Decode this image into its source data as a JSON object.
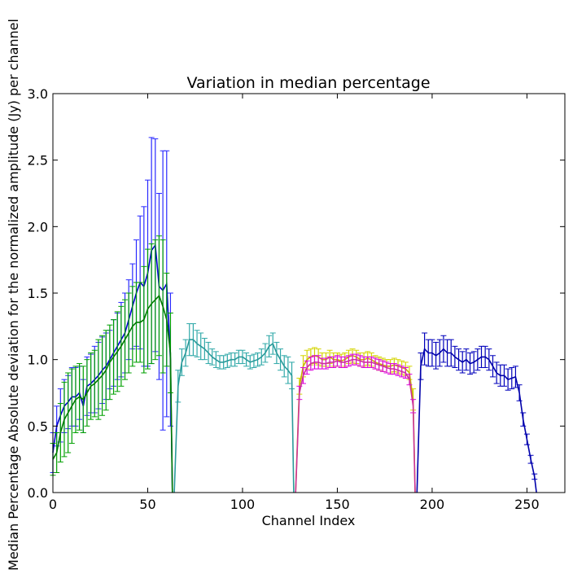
{
  "chart_data": {
    "type": "line",
    "title": "Variation in median percentage",
    "xlabel": "Channel Index",
    "ylabel": "Median Percentage Absolute deviation for the normalized amplitude (Jy) per channel",
    "xlim": [
      0,
      270
    ],
    "ylim": [
      0.0,
      3.0
    ],
    "grid": false,
    "legend": "none",
    "xticks": [
      0,
      50,
      100,
      150,
      200,
      250
    ],
    "xtick_labels": [
      "0",
      "50",
      "100",
      "150",
      "200",
      "250"
    ],
    "yticks": [
      0.0,
      0.5,
      1.0,
      1.5,
      2.0,
      2.5,
      3.0
    ],
    "ytick_labels": [
      "0.0",
      "0.5",
      "1.0",
      "1.5",
      "2.0",
      "2.5",
      "3.0"
    ],
    "series": [
      {
        "line_color": "#0000cc",
        "bar_color": "#2a2aff",
        "x": [
          0,
          2,
          4,
          6,
          8,
          10,
          12,
          14,
          16,
          18,
          20,
          22,
          24,
          26,
          28,
          30,
          32,
          34,
          36,
          38,
          40,
          42,
          44,
          46,
          48,
          50,
          52,
          54,
          56,
          58,
          60,
          62,
          63
        ],
        "y": [
          0.3,
          0.5,
          0.58,
          0.65,
          0.68,
          0.72,
          0.72,
          0.75,
          0.65,
          0.8,
          0.82,
          0.85,
          0.88,
          0.92,
          0.95,
          1.0,
          1.05,
          1.1,
          1.15,
          1.2,
          1.3,
          1.4,
          1.5,
          1.58,
          1.55,
          1.65,
          1.82,
          1.86,
          1.55,
          1.52,
          1.57,
          1.0,
          0.0
        ],
        "err": [
          0.15,
          0.15,
          0.2,
          0.2,
          0.2,
          0.22,
          0.22,
          0.2,
          0.2,
          0.22,
          0.22,
          0.25,
          0.25,
          0.25,
          0.25,
          0.22,
          0.25,
          0.25,
          0.28,
          0.3,
          0.3,
          0.32,
          0.4,
          0.5,
          0.6,
          0.7,
          0.85,
          0.8,
          0.7,
          1.05,
          1.0,
          0.5,
          0.0
        ]
      },
      {
        "line_color": "#007a00",
        "bar_color": "#00a000",
        "x": [
          0,
          2,
          4,
          6,
          8,
          10,
          12,
          14,
          16,
          18,
          20,
          22,
          24,
          26,
          28,
          30,
          32,
          34,
          36,
          38,
          40,
          42,
          44,
          46,
          48,
          50,
          52,
          54,
          56,
          58,
          60,
          62,
          63
        ],
        "y": [
          0.25,
          0.3,
          0.45,
          0.55,
          0.6,
          0.65,
          0.7,
          0.72,
          0.7,
          0.75,
          0.8,
          0.82,
          0.85,
          0.88,
          0.92,
          0.98,
          1.02,
          1.06,
          1.1,
          1.15,
          1.2,
          1.25,
          1.28,
          1.28,
          1.3,
          1.38,
          1.42,
          1.45,
          1.48,
          1.4,
          1.3,
          1.05,
          0.0
        ],
        "err": [
          0.12,
          0.15,
          0.22,
          0.28,
          0.3,
          0.28,
          0.25,
          0.25,
          0.25,
          0.25,
          0.25,
          0.25,
          0.3,
          0.3,
          0.3,
          0.28,
          0.28,
          0.3,
          0.3,
          0.3,
          0.3,
          0.3,
          0.3,
          0.3,
          0.4,
          0.45,
          0.45,
          0.45,
          0.45,
          0.5,
          0.35,
          0.3,
          0.0
        ]
      },
      {
        "line_color": "#2a9a9a",
        "bar_color": "#2fa8a8",
        "x": [
          64,
          66,
          68,
          70,
          72,
          74,
          76,
          78,
          80,
          82,
          84,
          86,
          88,
          90,
          92,
          94,
          96,
          98,
          100,
          102,
          104,
          106,
          108,
          110,
          112,
          114,
          116,
          118,
          120,
          122,
          124,
          126,
          127
        ],
        "y": [
          0.0,
          0.8,
          0.98,
          1.05,
          1.15,
          1.15,
          1.12,
          1.1,
          1.08,
          1.05,
          1.02,
          1.0,
          0.98,
          0.98,
          0.99,
          1.0,
          1.0,
          1.02,
          1.02,
          1.0,
          0.98,
          0.99,
          1.0,
          1.02,
          1.05,
          1.1,
          1.12,
          1.05,
          1.0,
          0.95,
          0.92,
          0.88,
          0.0
        ],
        "err": [
          0.0,
          0.12,
          0.1,
          0.1,
          0.12,
          0.12,
          0.1,
          0.1,
          0.08,
          0.08,
          0.06,
          0.06,
          0.05,
          0.05,
          0.05,
          0.05,
          0.05,
          0.05,
          0.05,
          0.05,
          0.05,
          0.05,
          0.05,
          0.06,
          0.07,
          0.08,
          0.08,
          0.08,
          0.08,
          0.08,
          0.1,
          0.1,
          0.0
        ]
      },
      {
        "line_color": "#c8b400",
        "bar_color": "#d4d400",
        "x": [
          128,
          130,
          132,
          134,
          136,
          138,
          140,
          142,
          144,
          146,
          148,
          150,
          152,
          154,
          156,
          158,
          160,
          162,
          164,
          166,
          168,
          170,
          172,
          174,
          176,
          178,
          180,
          182,
          184,
          186,
          188,
          190,
          191
        ],
        "y": [
          0.0,
          0.8,
          0.95,
          1.0,
          1.02,
          1.03,
          1.02,
          1.0,
          1.0,
          1.02,
          1.0,
          1.0,
          0.99,
          1.0,
          1.02,
          1.03,
          1.02,
          1.0,
          1.0,
          1.01,
          1.0,
          0.98,
          0.97,
          0.96,
          0.95,
          0.95,
          0.96,
          0.95,
          0.94,
          0.93,
          0.9,
          0.7,
          0.0
        ],
        "err": [
          0.0,
          0.06,
          0.08,
          0.07,
          0.06,
          0.06,
          0.06,
          0.05,
          0.05,
          0.05,
          0.05,
          0.05,
          0.05,
          0.05,
          0.05,
          0.05,
          0.05,
          0.05,
          0.05,
          0.05,
          0.05,
          0.05,
          0.05,
          0.05,
          0.05,
          0.05,
          0.05,
          0.05,
          0.05,
          0.05,
          0.05,
          0.08,
          0.0
        ]
      },
      {
        "line_color": "#cc3399",
        "bar_color": "#dd00dd",
        "x": [
          128,
          130,
          132,
          134,
          136,
          138,
          140,
          142,
          144,
          146,
          148,
          150,
          152,
          154,
          156,
          158,
          160,
          162,
          164,
          166,
          168,
          170,
          172,
          174,
          176,
          178,
          180,
          182,
          184,
          186,
          188,
          190,
          191
        ],
        "y": [
          0.0,
          0.75,
          0.88,
          0.94,
          0.97,
          0.98,
          0.98,
          0.97,
          0.97,
          0.98,
          0.98,
          0.99,
          0.98,
          0.98,
          0.99,
          1.0,
          1.0,
          0.99,
          0.98,
          0.98,
          0.98,
          0.97,
          0.96,
          0.95,
          0.94,
          0.93,
          0.93,
          0.92,
          0.91,
          0.9,
          0.85,
          0.65,
          0.0
        ],
        "err": [
          0.0,
          0.05,
          0.06,
          0.05,
          0.05,
          0.05,
          0.05,
          0.04,
          0.04,
          0.04,
          0.04,
          0.04,
          0.04,
          0.04,
          0.04,
          0.04,
          0.04,
          0.04,
          0.04,
          0.04,
          0.04,
          0.04,
          0.04,
          0.04,
          0.04,
          0.04,
          0.04,
          0.04,
          0.04,
          0.04,
          0.04,
          0.05,
          0.0
        ]
      },
      {
        "line_color": "#0000aa",
        "bar_color": "#0000bb",
        "x": [
          192,
          194,
          196,
          198,
          200,
          202,
          204,
          206,
          208,
          210,
          212,
          214,
          216,
          218,
          220,
          222,
          224,
          226,
          228,
          230,
          232,
          234,
          236,
          238,
          240,
          242,
          244,
          246,
          248,
          250,
          252,
          254,
          255
        ],
        "y": [
          0.0,
          0.95,
          1.08,
          1.05,
          1.05,
          1.03,
          1.05,
          1.08,
          1.05,
          1.05,
          1.02,
          1.0,
          0.98,
          1.0,
          0.97,
          0.98,
          1.0,
          1.02,
          1.02,
          1.0,
          0.95,
          0.9,
          0.88,
          0.88,
          0.85,
          0.86,
          0.87,
          0.75,
          0.55,
          0.4,
          0.25,
          0.12,
          0.0
        ],
        "err": [
          0.0,
          0.1,
          0.12,
          0.1,
          0.1,
          0.1,
          0.1,
          0.1,
          0.1,
          0.1,
          0.08,
          0.08,
          0.08,
          0.08,
          0.08,
          0.08,
          0.08,
          0.08,
          0.08,
          0.08,
          0.08,
          0.08,
          0.08,
          0.08,
          0.08,
          0.08,
          0.08,
          0.06,
          0.05,
          0.04,
          0.03,
          0.02,
          0.0
        ]
      }
    ]
  }
}
